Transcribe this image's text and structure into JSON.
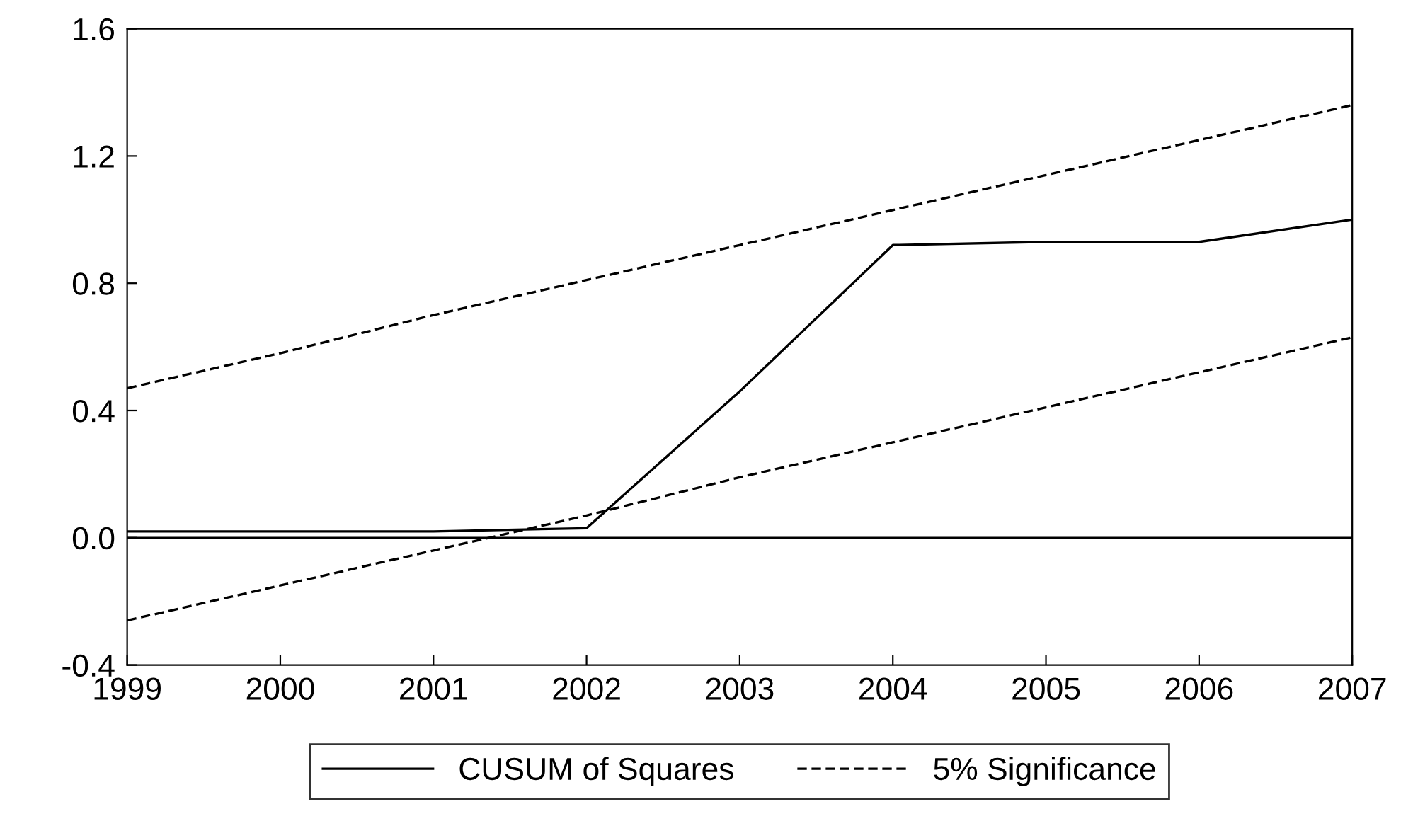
{
  "chart_data": {
    "type": "line",
    "x": [
      1999,
      2000,
      2001,
      2002,
      2003,
      2004,
      2005,
      2006,
      2007
    ],
    "series": [
      {
        "name": "CUSUM of Squares",
        "color": "#000000",
        "line_style": "solid",
        "values": [
          0.02,
          0.02,
          0.02,
          0.03,
          0.46,
          0.92,
          0.93,
          0.93,
          1.0
        ]
      },
      {
        "name": "5% Significance",
        "color": "#000000",
        "line_style": "dashed",
        "values": [
          0.47,
          0.58,
          0.7,
          0.81,
          0.92,
          1.03,
          1.14,
          1.25,
          1.36
        ]
      },
      {
        "color": "#000000",
        "line_style": "dashed",
        "values": [
          -0.26,
          -0.15,
          -0.04,
          0.07,
          0.19,
          0.3,
          0.41,
          0.52,
          0.63
        ]
      }
    ],
    "xlim": [
      1999,
      2007
    ],
    "xticks": [
      1999,
      2000,
      2001,
      2002,
      2003,
      2004,
      2005,
      2006,
      2007
    ],
    "ylim": [
      -0.4,
      1.6
    ],
    "yticks": [
      {
        "value": -0.4,
        "label": "-0.4"
      },
      {
        "value": 0.0,
        "label": "0.0"
      },
      {
        "value": 0.4,
        "label": "0.4"
      },
      {
        "value": 0.8,
        "label": "0.8"
      },
      {
        "value": 1.2,
        "label": "1.2"
      },
      {
        "value": 1.6,
        "label": "1.6"
      }
    ],
    "ref_lines": [
      {
        "axis": "y",
        "value": 0.0,
        "color": "#000000",
        "line_style": "solid"
      }
    ],
    "grid": false,
    "legend": "bottom",
    "marker": "none"
  }
}
